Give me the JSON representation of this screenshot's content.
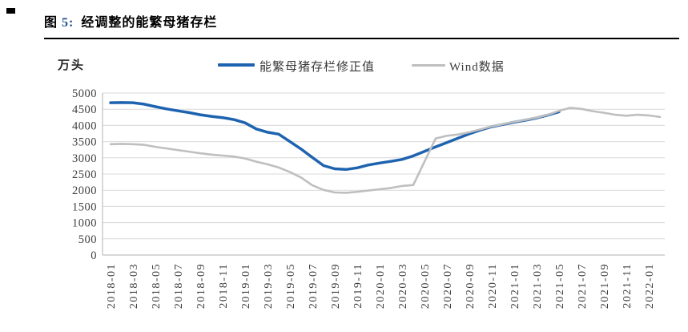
{
  "figure": {
    "marker_word": "图",
    "figure_number": "5:",
    "title": "经调整的能繁母猪存栏"
  },
  "chart_data": {
    "type": "line",
    "title": "经调整的能繁母猪存栏",
    "unit_label": "万头",
    "ylabel": "万头",
    "xlabel": "",
    "ylim": [
      0,
      5000
    ],
    "ytick_step": 500,
    "grid": "horizontal",
    "legend_position": "top",
    "x_tick_labels": [
      "2018-01",
      "2018-03",
      "2018-05",
      "2018-07",
      "2018-09",
      "2018-11",
      "2019-01",
      "2019-03",
      "2019-05",
      "2019-07",
      "2019-09",
      "2019-11",
      "2020-01",
      "2020-03",
      "2020-05",
      "2020-07",
      "2020-09",
      "2020-11",
      "2021-01",
      "2021-03",
      "2021-05",
      "2021-07",
      "2021-09",
      "2021-11",
      "2022-01"
    ],
    "x_months": [
      "2018-01",
      "2018-02",
      "2018-03",
      "2018-04",
      "2018-05",
      "2018-06",
      "2018-07",
      "2018-08",
      "2018-09",
      "2018-10",
      "2018-11",
      "2018-12",
      "2019-01",
      "2019-02",
      "2019-03",
      "2019-04",
      "2019-05",
      "2019-06",
      "2019-07",
      "2019-08",
      "2019-09",
      "2019-10",
      "2019-11",
      "2019-12",
      "2020-01",
      "2020-02",
      "2020-03",
      "2020-04",
      "2020-05",
      "2020-06",
      "2020-07",
      "2020-08",
      "2020-09",
      "2020-10",
      "2020-11",
      "2020-12",
      "2021-01",
      "2021-02",
      "2021-03",
      "2021-04",
      "2021-05",
      "2021-06",
      "2021-07",
      "2021-08",
      "2021-09",
      "2021-10",
      "2021-11",
      "2021-12",
      "2022-01",
      "2022-02"
    ],
    "series": [
      {
        "name": "能繁母猪存栏修正值",
        "color": "#1e63b0",
        "line_width": 3.5,
        "values": [
          4700,
          4705,
          4700,
          4655,
          4580,
          4510,
          4450,
          4395,
          4330,
          4280,
          4240,
          4180,
          4080,
          3890,
          3790,
          3730,
          3500,
          3270,
          3010,
          2760,
          2660,
          2640,
          2690,
          2780,
          2840,
          2890,
          2950,
          3060,
          3200,
          3340,
          3470,
          3610,
          3740,
          3860,
          3960,
          4030,
          4100,
          4160,
          4230,
          4320,
          4420
        ]
      },
      {
        "name": "Wind数据",
        "color": "#bfbfbf",
        "line_width": 2.6,
        "values": [
          3420,
          3430,
          3420,
          3400,
          3340,
          3290,
          3240,
          3190,
          3140,
          3100,
          3070,
          3040,
          2980,
          2880,
          2800,
          2700,
          2560,
          2390,
          2150,
          2010,
          1930,
          1920,
          1950,
          1990,
          2030,
          2070,
          2130,
          2160,
          2880,
          3600,
          3680,
          3720,
          3790,
          3880,
          3970,
          4040,
          4110,
          4170,
          4240,
          4330,
          4450,
          4545,
          4510,
          4440,
          4390,
          4330,
          4300,
          4330,
          4310,
          4260
        ]
      }
    ],
    "axis_color": "#bfbfbf",
    "gridline_color": "#d9d9d9",
    "tick_label_color": "#404040"
  }
}
